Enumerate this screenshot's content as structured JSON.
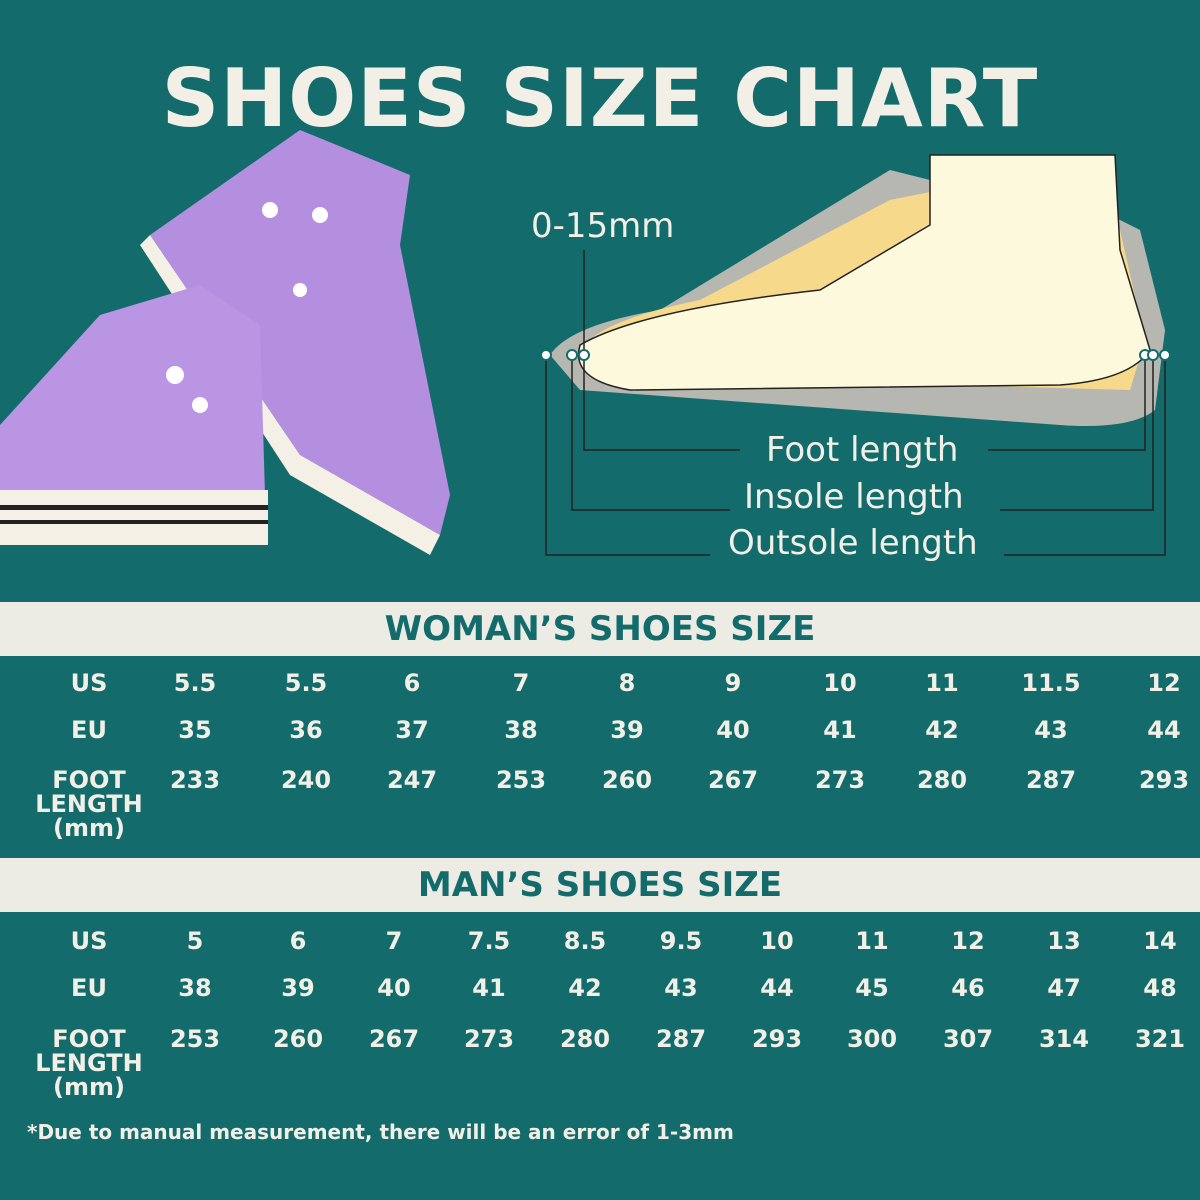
{
  "title": "SHOES SIZE CHART",
  "diagram": {
    "gap_label": "0-15mm",
    "foot_length": "Foot length",
    "insole_length": "Insole length",
    "outsole_length": "Outsole length"
  },
  "woman": {
    "heading": "WOMAN’S SHOES SIZE",
    "row_labels": [
      "US",
      "EU",
      "FOOT\nLENGTH\n(mm)"
    ],
    "us": [
      "5.5",
      "5.5",
      "6",
      "7",
      "8",
      "9",
      "10",
      "11",
      "11.5",
      "12"
    ],
    "eu": [
      "35",
      "36",
      "37",
      "38",
      "39",
      "40",
      "41",
      "42",
      "43",
      "44"
    ],
    "foot_length_mm": [
      "233",
      "240",
      "247",
      "253",
      "260",
      "267",
      "273",
      "280",
      "287",
      "293"
    ]
  },
  "man": {
    "heading": "MAN’S SHOES SIZE",
    "row_labels": [
      "US",
      "EU",
      "FOOT\nLENGTH\n(mm)"
    ],
    "us": [
      "5",
      "6",
      "7",
      "7.5",
      "8.5",
      "9.5",
      "10",
      "11",
      "12",
      "13",
      "14"
    ],
    "eu": [
      "38",
      "39",
      "40",
      "41",
      "42",
      "43",
      "44",
      "45",
      "46",
      "47",
      "48"
    ],
    "foot_length_mm": [
      "253",
      "260",
      "267",
      "273",
      "280",
      "287",
      "293",
      "300",
      "307",
      "314",
      "321"
    ]
  },
  "note": "*Due to manual measurement, there will be an error of 1-3mm",
  "colors": {
    "background": "#136c6b",
    "band": "#ecebe4",
    "text": "#f2efe6",
    "sneaker": "#b48fe0"
  }
}
